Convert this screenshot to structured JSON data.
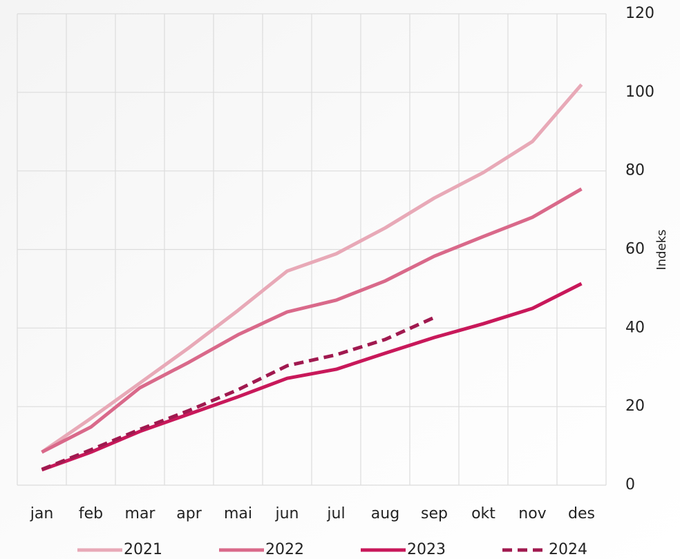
{
  "chart_data": {
    "type": "line",
    "categories": [
      "jan",
      "feb",
      "mar",
      "apr",
      "mai",
      "jun",
      "jul",
      "aug",
      "sep",
      "okt",
      "nov",
      "des"
    ],
    "y_label": "Indeks",
    "ylim": [
      0,
      120
    ],
    "yticks": [
      0,
      20,
      40,
      60,
      80,
      100,
      120
    ],
    "y_axis_side": "right",
    "grid": true,
    "legend": "bottom",
    "series": [
      {
        "name": "2021",
        "color": "#e8a9b7",
        "style": "solid",
        "values": [
          8.4,
          17,
          26,
          35,
          44.5,
          54.5,
          58.9,
          65.5,
          73.1,
          79.6,
          87.5,
          102
        ]
      },
      {
        "name": "2022",
        "color": "#d9698a",
        "style": "solid",
        "values": [
          8.4,
          14.8,
          24.8,
          31.3,
          38.3,
          44.1,
          47.1,
          52,
          58.3,
          63.3,
          68.2,
          75.4
        ]
      },
      {
        "name": "2023",
        "color": "#c8185a",
        "style": "solid",
        "values": [
          3.9,
          8.4,
          13.7,
          18.1,
          22.5,
          27.2,
          29.5,
          33.6,
          37.6,
          41.1,
          45,
          51.3
        ]
      },
      {
        "name": "2024",
        "color": "#a0194f",
        "style": "dashed",
        "values": [
          4,
          9,
          14.2,
          19,
          24.3,
          30.4,
          33.2,
          37.1,
          42.7,
          null,
          null,
          null
        ]
      }
    ]
  }
}
